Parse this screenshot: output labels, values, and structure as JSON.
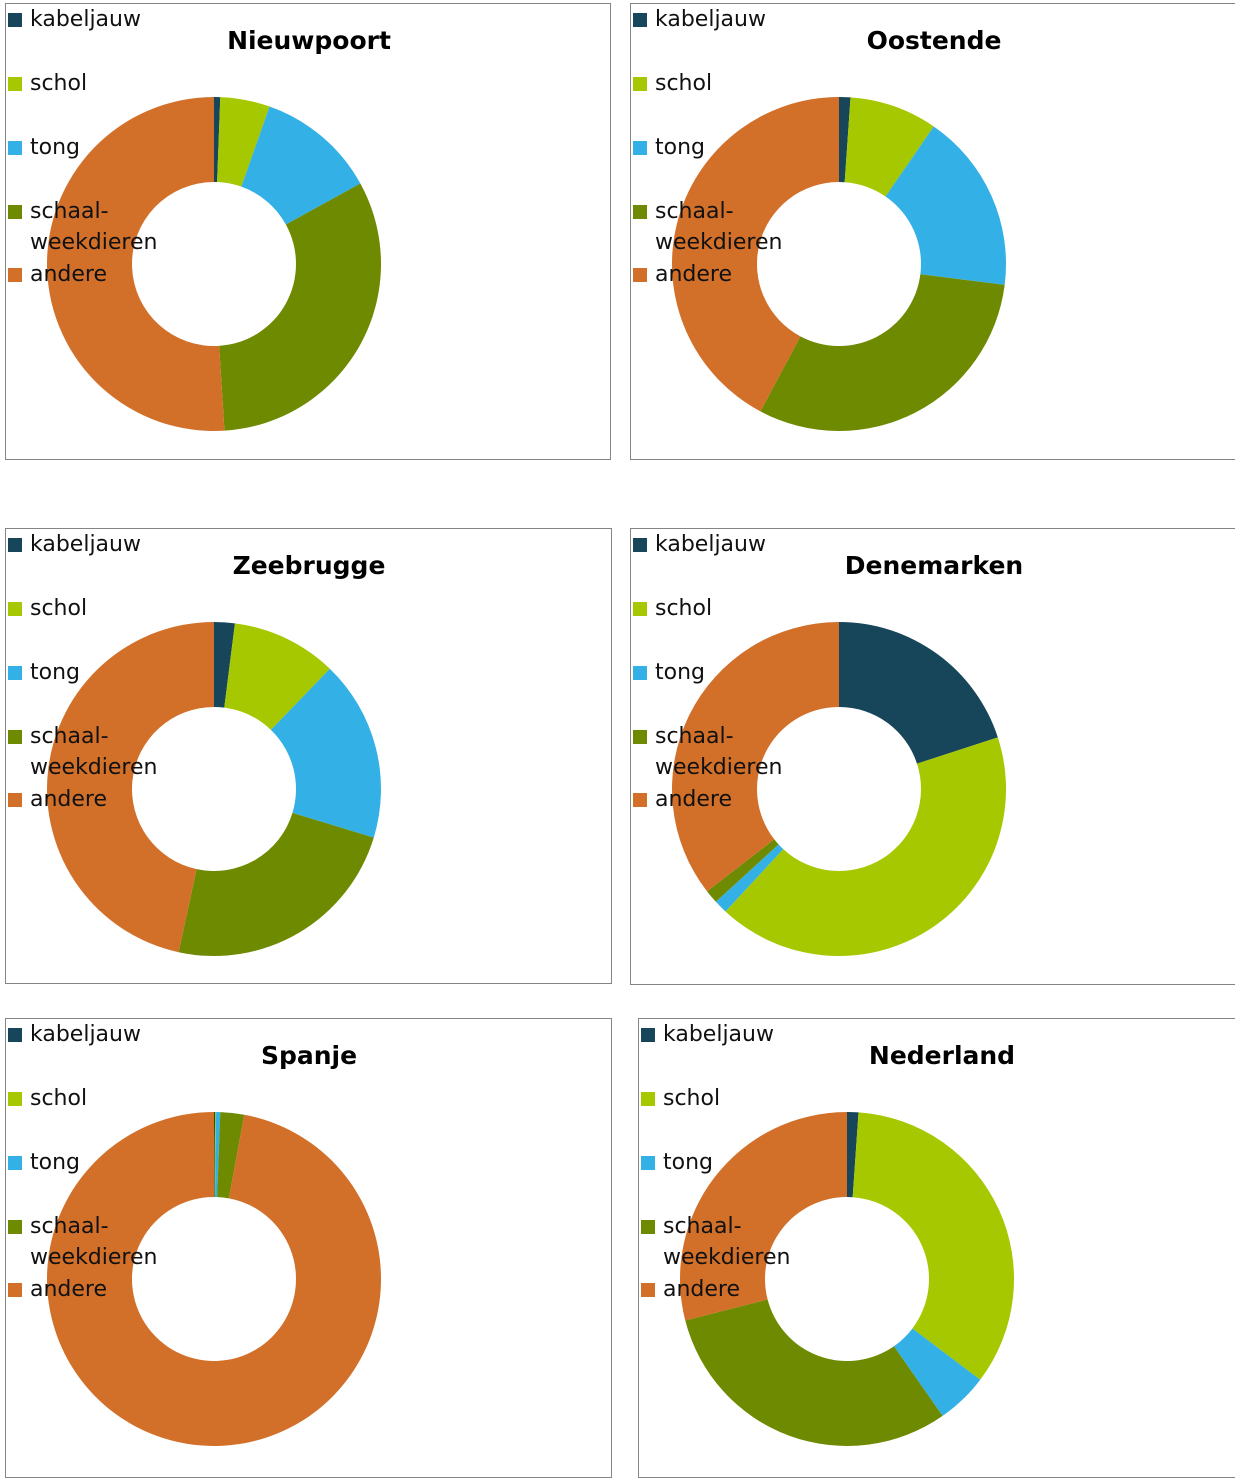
{
  "chart_data": [
    {
      "type": "donut",
      "title": "Nieuwpoort",
      "categories": [
        "kabeljauw",
        "schol",
        "tong",
        "schaal-\nweekdieren",
        "andere"
      ],
      "values": [
        0.6,
        4.8,
        11.6,
        32,
        51
      ],
      "colors": [
        "#17455a",
        "#a5c800",
        "#33b0e6",
        "#6e8a00",
        "#d2702a"
      ],
      "legend": "right"
    },
    {
      "type": "donut",
      "title": "Oostende",
      "categories": [
        "kabeljauw",
        "schol",
        "tong",
        "schaal-\nweekdieren",
        "andere"
      ],
      "values": [
        1.1,
        8.5,
        17.4,
        30.8,
        42.2
      ],
      "colors": [
        "#17455a",
        "#a5c800",
        "#33b0e6",
        "#6e8a00",
        "#d2702a"
      ],
      "legend": "right"
    },
    {
      "type": "donut",
      "title": "Zeebrugge",
      "categories": [
        "kabeljauw",
        "schol",
        "tong",
        "schaal-\nweekdieren",
        "andere"
      ],
      "values": [
        2,
        10.2,
        17.5,
        23.7,
        46.6
      ],
      "colors": [
        "#17455a",
        "#a5c800",
        "#33b0e6",
        "#6e8a00",
        "#d2702a"
      ],
      "legend": "right"
    },
    {
      "type": "donut",
      "title": "Denemarken",
      "categories": [
        "kabeljauw",
        "schol",
        "tong",
        "schaal-\nweekdieren",
        "andere"
      ],
      "values": [
        20,
        41.9,
        1.3,
        1.3,
        35.5
      ],
      "colors": [
        "#17455a",
        "#a5c800",
        "#33b0e6",
        "#6e8a00",
        "#d2702a"
      ],
      "legend": "right"
    },
    {
      "type": "donut",
      "title": "Spanje",
      "categories": [
        "kabeljauw",
        "schol",
        "tong",
        "schaal-\nweekdieren",
        "andere"
      ],
      "values": [
        0.1,
        0.1,
        0.4,
        2.3,
        97.1
      ],
      "colors": [
        "#17455a",
        "#a5c800",
        "#33b0e6",
        "#6e8a00",
        "#d2702a"
      ],
      "legend": "right"
    },
    {
      "type": "donut",
      "title": "Nederland",
      "categories": [
        "kabeljauw",
        "schol",
        "tong",
        "schaal-\nweekdieren",
        "andere"
      ],
      "values": [
        1.1,
        34.2,
        5,
        30.7,
        29
      ],
      "colors": [
        "#17455a",
        "#a5c800",
        "#33b0e6",
        "#6e8a00",
        "#d2702a"
      ],
      "legend": "right"
    }
  ]
}
